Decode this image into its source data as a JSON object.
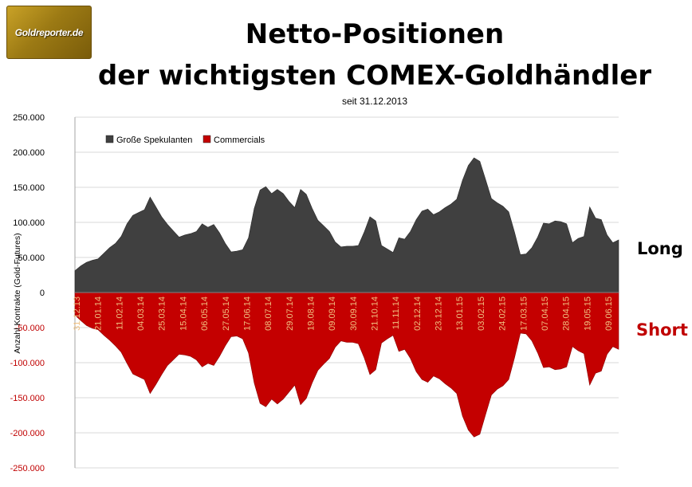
{
  "logo": {
    "text": "Goldreporter.de"
  },
  "title_line1": "Netto-Positionen",
  "title_line2": "der wichtigsten COMEX-Goldhändler",
  "subtitle": "seit 31.12.2013",
  "side_labels": {
    "long": "Long",
    "short": "Short"
  },
  "colors": {
    "spekulanten": "#404040",
    "commercials": "#c40000",
    "short_label": "#c00000",
    "date_label": "#f0c080"
  },
  "chart_data": {
    "type": "area",
    "title": "Netto-Positionen der wichtigsten COMEX-Goldhändler",
    "subtitle": "seit 31.12.2013",
    "ylabel": "Anzahl Kontrakte  (Gold-Futures)",
    "xlabel": "",
    "ylim": [
      -250000,
      250000
    ],
    "yticks": [
      250000,
      200000,
      150000,
      100000,
      50000,
      0,
      -50000,
      -100000,
      -150000,
      -200000,
      -250000
    ],
    "ytick_labels": [
      "250.000",
      "200.000",
      "150.000",
      "100.000",
      "50.000",
      "0",
      "-50.000",
      "-100.000",
      "-150.000",
      "-200.000",
      "-250.000"
    ],
    "grid": true,
    "legend_position": "top-left",
    "x_tick_labels": [
      "31.12.13",
      "21.01.14",
      "11.02.14",
      "04.03.14",
      "25.03.14",
      "15.04.14",
      "06.05.14",
      "27.05.14",
      "17.06.14",
      "08.07.14",
      "29.07.14",
      "19.08.14",
      "09.09.14",
      "30.09.14",
      "21.10.14",
      "11.11.14",
      "02.12.14",
      "23.12.14",
      "13.01.15",
      "03.02.15",
      "24.02.15",
      "17.03.15",
      "07.04.15",
      "28.04.15",
      "19.05.15",
      "09.06.15"
    ],
    "series": [
      {
        "name": "Große Spekulanten",
        "values": [
          31000,
          38000,
          43000,
          46000,
          48000,
          56000,
          64000,
          70000,
          80000,
          98000,
          110000,
          114000,
          118000,
          136000,
          122000,
          108000,
          97000,
          88000,
          79000,
          82000,
          84000,
          87000,
          98000,
          93000,
          97000,
          85000,
          70000,
          58000,
          59000,
          61000,
          78000,
          120000,
          146000,
          151000,
          141000,
          147000,
          141000,
          130000,
          121000,
          147000,
          140000,
          120000,
          103000,
          95000,
          87000,
          72000,
          65000,
          66000,
          66000,
          67000,
          86000,
          108000,
          102000,
          67000,
          62000,
          57000,
          78000,
          76000,
          87000,
          104000,
          116000,
          119000,
          111000,
          115000,
          121000,
          126000,
          133000,
          160000,
          181000,
          192000,
          187000,
          161000,
          134000,
          128000,
          123000,
          115000,
          86000,
          54000,
          55000,
          64000,
          79000,
          99000,
          98000,
          102000,
          101000,
          98000,
          71000,
          77000,
          80000,
          122000,
          106000,
          104000,
          82000,
          71000,
          75000
        ]
      },
      {
        "name": "Commercials",
        "values": [
          -32000,
          -40000,
          -47000,
          -51000,
          -53000,
          -61000,
          -68000,
          -76000,
          -85000,
          -101000,
          -116000,
          -120000,
          -124000,
          -144000,
          -131000,
          -117000,
          -104000,
          -96000,
          -88000,
          -89000,
          -91000,
          -96000,
          -106000,
          -101000,
          -104000,
          -91000,
          -76000,
          -63000,
          -62000,
          -66000,
          -86000,
          -129000,
          -158000,
          -163000,
          -152000,
          -159000,
          -152000,
          -142000,
          -132000,
          -160000,
          -151000,
          -129000,
          -111000,
          -102000,
          -94000,
          -78000,
          -69000,
          -71000,
          -71000,
          -73000,
          -93000,
          -117000,
          -110000,
          -72000,
          -66000,
          -61000,
          -84000,
          -81000,
          -94000,
          -113000,
          -124000,
          -128000,
          -119000,
          -123000,
          -130000,
          -136000,
          -144000,
          -176000,
          -196000,
          -206000,
          -202000,
          -174000,
          -146000,
          -138000,
          -133000,
          -124000,
          -93000,
          -58000,
          -59000,
          -69000,
          -86000,
          -107000,
          -106000,
          -110000,
          -109000,
          -106000,
          -77000,
          -83000,
          -87000,
          -132000,
          -115000,
          -112000,
          -88000,
          -77000,
          -81000
        ]
      }
    ]
  }
}
